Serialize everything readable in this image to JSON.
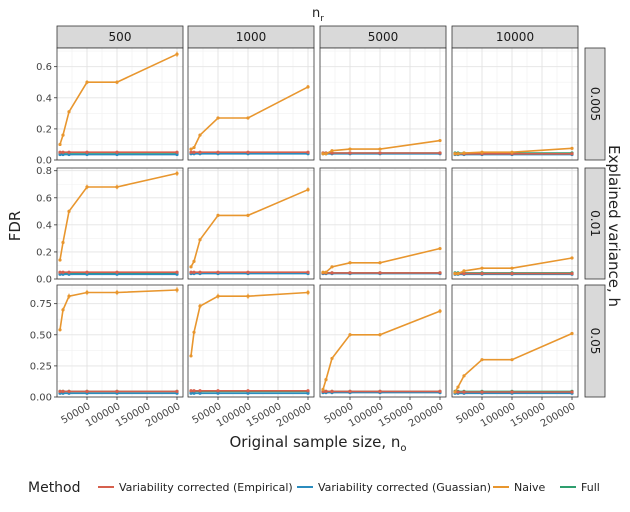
{
  "chart_data": {
    "type": "line",
    "col_title": "n",
    "col_title_sub": "r",
    "row_title": "Explained variance, h",
    "xlabel": "Original sample size, n",
    "xlabel_sub": "o",
    "ylabel": "FDR",
    "columns": [
      "500",
      "1000",
      "5000",
      "10000"
    ],
    "rows": [
      "0.005",
      "0.01",
      "0.05"
    ],
    "x": [
      5000,
      10000,
      20000,
      50000,
      100000,
      200000
    ],
    "xlim": [
      0,
      210000
    ],
    "xticks": [
      "50000",
      "100000",
      "150000",
      "200000"
    ],
    "row_ylims": [
      [
        0,
        0.72
      ],
      [
        0,
        0.82
      ],
      [
        0,
        0.9
      ]
    ],
    "row_yticks": [
      [
        "0.0",
        "0.2",
        "0.4",
        "0.6"
      ],
      [
        "0.0",
        "0.2",
        "0.4",
        "0.6",
        "0.8"
      ],
      [
        "0.00",
        "0.25",
        "0.50",
        "0.75"
      ]
    ],
    "legend_title": "Method",
    "legend_position": "bottom",
    "series": [
      {
        "name": "Variability corrected (Empirical)",
        "color": "#d6604d"
      },
      {
        "name": "Variability corrected (Guassian)",
        "color": "#2b8cbe"
      },
      {
        "name": "Naive",
        "color": "#e8962e"
      },
      {
        "name": "Full",
        "color": "#2e9e6e"
      }
    ],
    "panels": [
      [
        {
          "Naive": [
            0.1,
            0.16,
            0.31,
            0.5,
            0.5,
            0.68
          ],
          "Full": [
            0.045,
            0.045,
            0.045,
            0.045,
            0.045,
            0.045
          ],
          "Empirical": [
            0.05,
            0.05,
            0.05,
            0.05,
            0.05,
            0.05
          ],
          "Guassian": [
            0.035,
            0.035,
            0.035,
            0.035,
            0.035,
            0.035
          ]
        },
        {
          "Naive": [
            0.07,
            0.08,
            0.16,
            0.27,
            0.27,
            0.47
          ],
          "Full": [
            0.045,
            0.045,
            0.045,
            0.045,
            0.045,
            0.045
          ],
          "Empirical": [
            0.05,
            0.05,
            0.05,
            0.05,
            0.05,
            0.05
          ],
          "Guassian": [
            0.04,
            0.04,
            0.04,
            0.04,
            0.04,
            0.04
          ]
        },
        {
          "Naive": [
            0.04,
            0.04,
            0.06,
            0.07,
            0.07,
            0.125
          ],
          "Full": [
            0.045,
            0.045,
            0.045,
            0.045,
            0.045,
            0.045
          ],
          "Empirical": [
            0.045,
            0.045,
            0.045,
            0.045,
            0.045,
            0.045
          ],
          "Guassian": [
            0.04,
            0.04,
            0.04,
            0.04,
            0.04,
            0.04
          ]
        },
        {
          "Naive": [
            0.04,
            0.04,
            0.045,
            0.05,
            0.05,
            0.075
          ],
          "Full": [
            0.045,
            0.045,
            0.045,
            0.045,
            0.045,
            0.045
          ],
          "Empirical": [
            0.04,
            0.04,
            0.04,
            0.04,
            0.04,
            0.04
          ],
          "Guassian": [
            0.035,
            0.035,
            0.035,
            0.035,
            0.035,
            0.035
          ]
        }
      ],
      [
        {
          "Naive": [
            0.14,
            0.27,
            0.5,
            0.68,
            0.68,
            0.78
          ],
          "Full": [
            0.045,
            0.045,
            0.045,
            0.045,
            0.045,
            0.045
          ],
          "Empirical": [
            0.05,
            0.05,
            0.05,
            0.05,
            0.05,
            0.05
          ],
          "Guassian": [
            0.035,
            0.035,
            0.035,
            0.035,
            0.035,
            0.035
          ]
        },
        {
          "Naive": [
            0.09,
            0.13,
            0.29,
            0.47,
            0.47,
            0.66
          ],
          "Full": [
            0.045,
            0.045,
            0.045,
            0.045,
            0.045,
            0.045
          ],
          "Empirical": [
            0.05,
            0.05,
            0.05,
            0.05,
            0.05,
            0.05
          ],
          "Guassian": [
            0.04,
            0.04,
            0.04,
            0.04,
            0.04,
            0.04
          ]
        },
        {
          "Naive": [
            0.05,
            0.05,
            0.09,
            0.12,
            0.12,
            0.225
          ],
          "Full": [
            0.045,
            0.045,
            0.045,
            0.045,
            0.045,
            0.045
          ],
          "Empirical": [
            0.045,
            0.045,
            0.045,
            0.045,
            0.045,
            0.045
          ],
          "Guassian": [
            0.04,
            0.04,
            0.04,
            0.04,
            0.04,
            0.04
          ]
        },
        {
          "Naive": [
            0.04,
            0.04,
            0.06,
            0.08,
            0.08,
            0.155
          ],
          "Full": [
            0.045,
            0.045,
            0.045,
            0.045,
            0.045,
            0.045
          ],
          "Empirical": [
            0.04,
            0.04,
            0.04,
            0.04,
            0.04,
            0.04
          ],
          "Guassian": [
            0.035,
            0.035,
            0.035,
            0.035,
            0.035,
            0.035
          ]
        }
      ],
      [
        {
          "Naive": [
            0.54,
            0.7,
            0.81,
            0.84,
            0.84,
            0.86
          ],
          "Full": [
            0.045,
            0.045,
            0.045,
            0.045,
            0.045,
            0.045
          ],
          "Empirical": [
            0.045,
            0.045,
            0.045,
            0.045,
            0.045,
            0.045
          ],
          "Guassian": [
            0.03,
            0.03,
            0.03,
            0.03,
            0.03,
            0.03
          ]
        },
        {
          "Naive": [
            0.33,
            0.52,
            0.73,
            0.81,
            0.81,
            0.84
          ],
          "Full": [
            0.045,
            0.045,
            0.045,
            0.045,
            0.045,
            0.045
          ],
          "Empirical": [
            0.05,
            0.05,
            0.05,
            0.05,
            0.05,
            0.05
          ],
          "Guassian": [
            0.03,
            0.03,
            0.03,
            0.03,
            0.03,
            0.03
          ]
        },
        {
          "Naive": [
            0.06,
            0.14,
            0.31,
            0.5,
            0.5,
            0.69
          ],
          "Full": [
            0.045,
            0.045,
            0.045,
            0.045,
            0.045,
            0.045
          ],
          "Empirical": [
            0.045,
            0.045,
            0.045,
            0.045,
            0.045,
            0.045
          ],
          "Guassian": [
            0.035,
            0.035,
            0.035,
            0.035,
            0.035,
            0.035
          ]
        },
        {
          "Naive": [
            0.04,
            0.08,
            0.17,
            0.3,
            0.3,
            0.51
          ],
          "Full": [
            0.045,
            0.045,
            0.045,
            0.045,
            0.045,
            0.045
          ],
          "Empirical": [
            0.04,
            0.04,
            0.04,
            0.04,
            0.04,
            0.04
          ],
          "Guassian": [
            0.03,
            0.03,
            0.03,
            0.03,
            0.03,
            0.03
          ]
        }
      ]
    ]
  }
}
